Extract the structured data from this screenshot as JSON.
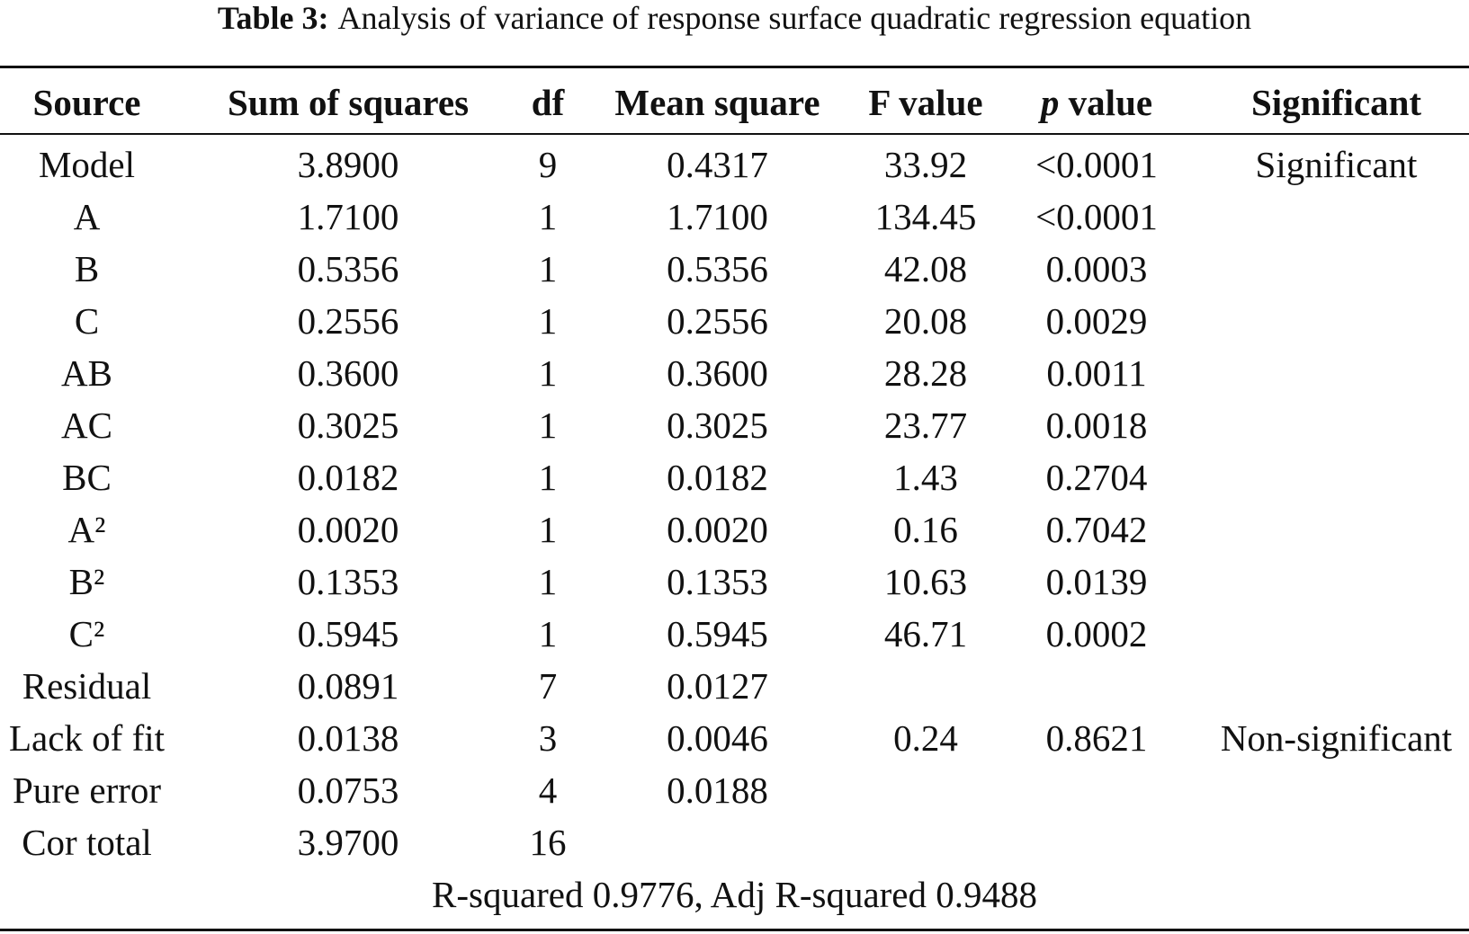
{
  "caption": {
    "label": "Table 3:",
    "text": "Analysis of variance of response surface quadratic regression equation"
  },
  "table": {
    "headers": {
      "source": "Source",
      "sum_of_squares": "Sum of squares",
      "df": "df",
      "mean_square": "Mean square",
      "f_value": "F value",
      "p_symbol": "p",
      "p_rest": " value",
      "significant": "Significant"
    },
    "rows": [
      {
        "source": "Model",
        "ss": "3.8900",
        "df": "9",
        "ms": "0.4317",
        "f": "33.92",
        "p": "<0.0001",
        "sig": "Significant"
      },
      {
        "source": "A",
        "ss": "1.7100",
        "df": "1",
        "ms": "1.7100",
        "f": "134.45",
        "p": "<0.0001",
        "sig": ""
      },
      {
        "source": "B",
        "ss": "0.5356",
        "df": "1",
        "ms": "0.5356",
        "f": "42.08",
        "p": "0.0003",
        "sig": ""
      },
      {
        "source": "C",
        "ss": "0.2556",
        "df": "1",
        "ms": "0.2556",
        "f": "20.08",
        "p": "0.0029",
        "sig": ""
      },
      {
        "source": "AB",
        "ss": "0.3600",
        "df": "1",
        "ms": "0.3600",
        "f": "28.28",
        "p": "0.0011",
        "sig": ""
      },
      {
        "source": "AC",
        "ss": "0.3025",
        "df": "1",
        "ms": "0.3025",
        "f": "23.77",
        "p": "0.0018",
        "sig": ""
      },
      {
        "source": "BC",
        "ss": "0.0182",
        "df": "1",
        "ms": "0.0182",
        "f": "1.43",
        "p": "0.2704",
        "sig": ""
      },
      {
        "source": "A²",
        "ss": "0.0020",
        "df": "1",
        "ms": "0.0020",
        "f": "0.16",
        "p": "0.7042",
        "sig": ""
      },
      {
        "source": "B²",
        "ss": "0.1353",
        "df": "1",
        "ms": "0.1353",
        "f": "10.63",
        "p": "0.0139",
        "sig": ""
      },
      {
        "source": "C²",
        "ss": "0.5945",
        "df": "1",
        "ms": "0.5945",
        "f": "46.71",
        "p": "0.0002",
        "sig": ""
      },
      {
        "source": "Residual",
        "ss": "0.0891",
        "df": "7",
        "ms": "0.0127",
        "f": "",
        "p": "",
        "sig": ""
      },
      {
        "source": "Lack of fit",
        "ss": "0.0138",
        "df": "3",
        "ms": "0.0046",
        "f": "0.24",
        "p": "0.8621",
        "sig": "Non-significant"
      },
      {
        "source": "Pure error",
        "ss": "0.0753",
        "df": "4",
        "ms": "0.0188",
        "f": "",
        "p": "",
        "sig": ""
      },
      {
        "source": "Cor total",
        "ss": "3.9700",
        "df": "16",
        "ms": "",
        "f": "",
        "p": "",
        "sig": ""
      }
    ],
    "footer": "R-squared 0.9776, Adj R-squared 0.9488"
  }
}
